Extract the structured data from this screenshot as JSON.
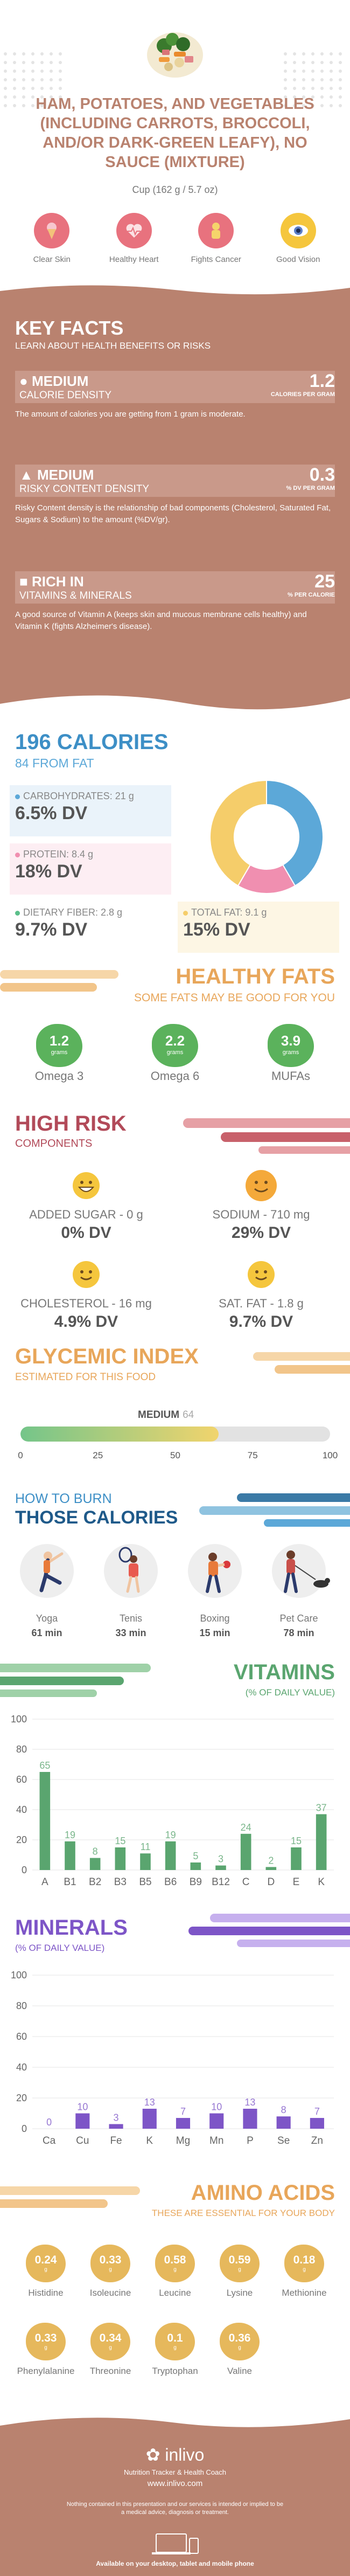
{
  "header": {
    "title": "HAM, POTATOES, AND VEGETABLES (INCLUDING CARROTS, BROCCOLI, AND/OR DARK-GREEN LEAFY), NO SAUCE (MIXTURE)",
    "serving": "Cup (162 g / 5.7 oz)",
    "benefits": [
      {
        "label": "Clear Skin",
        "icon": "ice-cream-icon",
        "color": "#e8727e"
      },
      {
        "label": "Healthy Heart",
        "icon": "heart-icon",
        "color": "#e8727e"
      },
      {
        "label": "Fights Cancer",
        "icon": "ribbon-icon",
        "color": "#e8727e"
      },
      {
        "label": "Good Vision",
        "icon": "eye-icon",
        "color": "#f5c63d"
      }
    ]
  },
  "key_facts": {
    "title": "KEY FACTS",
    "subtitle": "LEARN ABOUT HEALTH BENEFITS OR RISKS",
    "facts": [
      {
        "level": "MEDIUM",
        "label": "CALORIE DENSITY",
        "value": "1.2",
        "unit": "CALORIES PER GRAM",
        "description": "The amount of calories you are getting from 1 gram is moderate."
      },
      {
        "level": "MEDIUM",
        "label": "RISKY CONTENT DENSITY",
        "value": "0.3",
        "unit": "% DV PER GRAM",
        "description": "Risky Content density is the relationship of bad components (Cholesterol, Saturated Fat, Sugars & Sodium) to the amount (%DV/gr)."
      },
      {
        "level": "RICH IN",
        "label": "VITAMINS & MINERALS",
        "value": "25",
        "unit": "% PER CALORIE",
        "description": "A good source of Vitamin A (keeps skin and mucous membrane cells healthy) and Vitamin K (fights Alzheimer's disease)."
      }
    ]
  },
  "calories": {
    "title": "196 CALORIES",
    "subtitle": "84 FROM FAT",
    "nutrients": [
      {
        "label": "CARBOHYDRATES: 21 g",
        "dv": "6.5% DV",
        "color": "#5ca8d8"
      },
      {
        "label": "PROTEIN: 8.4 g",
        "dv": "18% DV",
        "color": "#f08fb0"
      },
      {
        "label": "DIETARY FIBER: 2.8 g",
        "dv": "9.7% DV",
        "color": "#5bbf8a"
      },
      {
        "label": "TOTAL FAT: 9.1 g",
        "dv": "15% DV",
        "color": "#f5cd6a"
      }
    ],
    "donut": [
      {
        "name": "carbohydrates",
        "value": 84,
        "color": "#5ca8d8"
      },
      {
        "name": "protein",
        "value": 34,
        "color": "#f08fb0"
      },
      {
        "name": "fat",
        "value": 84,
        "color": "#f5cd6a"
      }
    ]
  },
  "healthy_fats": {
    "title": "HEALTHY FATS",
    "subtitle": "SOME FATS MAY BE GOOD FOR YOU",
    "unit": "grams",
    "items": [
      {
        "value": "1.2",
        "name": "Omega 3"
      },
      {
        "value": "2.2",
        "name": "Omega 6"
      },
      {
        "value": "3.9",
        "name": "MUFAs"
      }
    ]
  },
  "high_risk": {
    "title": "HIGH RISK",
    "subtitle": "COMPONENTS",
    "items": [
      {
        "label": "ADDED SUGAR - 0 g",
        "dv": "0% DV",
        "face": "grin"
      },
      {
        "label": "SODIUM - 710 mg",
        "dv": "29% DV",
        "face": "smile-orange"
      },
      {
        "label": "CHOLESTEROL - 16 mg",
        "dv": "4.9% DV",
        "face": "smile"
      },
      {
        "label": "SAT. FAT - 1.8 g",
        "dv": "9.7% DV",
        "face": "smile"
      }
    ]
  },
  "glycemic": {
    "title": "GLYCEMIC INDEX",
    "subtitle": "ESTIMATED FOR THIS FOOD",
    "level": "MEDIUM",
    "value": "64",
    "value_num": 64,
    "ticks": [
      "0",
      "25",
      "50",
      "75",
      "100"
    ]
  },
  "burn": {
    "title1": "HOW TO BURN",
    "title2": "THOSE CALORIES",
    "activities": [
      {
        "name": "Yoga",
        "minutes": "61 min",
        "icon": "yoga-icon"
      },
      {
        "name": "Tenis",
        "minutes": "33 min",
        "icon": "tennis-icon"
      },
      {
        "name": "Boxing",
        "minutes": "15 min",
        "icon": "boxing-icon"
      },
      {
        "name": "Pet Care",
        "minutes": "78 min",
        "icon": "dog-walking-icon"
      }
    ]
  },
  "vitamins": {
    "title": "VITAMINS",
    "subtitle": "(% OF DAILY VALUE)",
    "chart_data": {
      "type": "bar",
      "categories": [
        "A",
        "B1",
        "B2",
        "B3",
        "B5",
        "B6",
        "B9",
        "B12",
        "C",
        "D",
        "E",
        "K"
      ],
      "values": [
        65,
        19,
        8,
        15,
        11,
        19,
        5,
        3,
        24,
        2,
        15,
        37
      ],
      "ylim": [
        0,
        100
      ],
      "yticks": [
        "0",
        "20",
        "40",
        "60",
        "80",
        "100"
      ],
      "color": "#5aa56f"
    }
  },
  "minerals": {
    "title": "MINERALS",
    "subtitle": "(% OF DAILY VALUE)",
    "chart_data": {
      "type": "bar",
      "categories": [
        "Ca",
        "Cu",
        "Fe",
        "K",
        "Mg",
        "Mn",
        "P",
        "Se",
        "Zn"
      ],
      "values": [
        0,
        10,
        3,
        13,
        7,
        10,
        13,
        8,
        7
      ],
      "ylim": [
        0,
        100
      ],
      "yticks": [
        "0",
        "20",
        "40",
        "60",
        "80",
        "100"
      ],
      "color": "#7d55c7"
    }
  },
  "amino": {
    "title": "AMINO ACIDS",
    "subtitle": "THESE ARE ESSENTIAL FOR YOUR BODY",
    "unit": "g",
    "items": [
      {
        "value": "0.24",
        "name": "Histidine"
      },
      {
        "value": "0.33",
        "name": "Isoleucine"
      },
      {
        "value": "0.58",
        "name": "Leucine"
      },
      {
        "value": "0.59",
        "name": "Lysine"
      },
      {
        "value": "0.18",
        "name": "Methionine"
      },
      {
        "value": "0.33",
        "name": "Phenylalanine"
      },
      {
        "value": "0.34",
        "name": "Threonine"
      },
      {
        "value": "0.1",
        "name": "Tryptophan"
      },
      {
        "value": "0.36",
        "name": "Valine"
      }
    ]
  },
  "footer": {
    "brand": "inlivo",
    "tagline": "Nutrition Tracker & Health Coach",
    "url": "www.inlivo.com",
    "disclaimer": "Nothing contained in this presentation and our services is intended or implied to be a medical advice, diagnosis or treatment.",
    "devices": "Available on your desktop, tablet and mobile phone"
  }
}
